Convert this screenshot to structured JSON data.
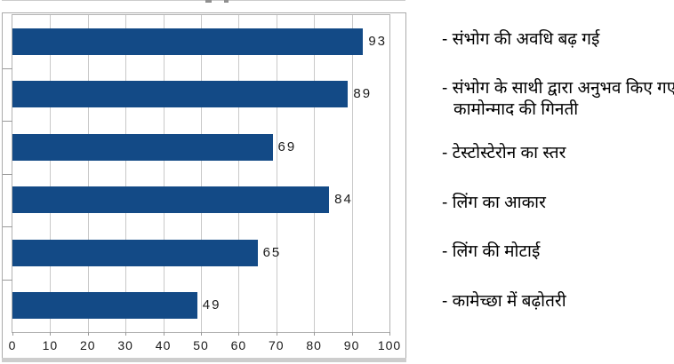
{
  "chart_data": {
    "type": "bar",
    "orientation": "horizontal",
    "title": "",
    "xlabel": "",
    "ylabel": "",
    "xlim": [
      0,
      100
    ],
    "x_ticks": [
      0,
      10,
      20,
      30,
      40,
      50,
      60,
      70,
      80,
      90,
      100
    ],
    "grid": true,
    "legend_position": "right",
    "legend_prefix": "- ",
    "bar_color": "#134a86",
    "categories": [
      "संभोग की अवधि बढ़ गई",
      "संभोग के साथी द्वारा अनुभव किए गए कामोन्माद की गिनती",
      "टेस्टोस्टेरोन का स्तर",
      "लिंग का आकार",
      "लिंग की मोटाई",
      "कामेच्छा में बढ़ोतरी"
    ],
    "values": [
      93,
      89,
      69,
      84,
      65,
      49
    ],
    "value_labels": [
      "93",
      "89",
      "69",
      "84",
      "65",
      "49"
    ]
  },
  "colors": {
    "bar": "#134a86",
    "gridline": "#c9c9c9",
    "plot_border": "#b2b2b2",
    "panel_border": "#ababab",
    "axis_text": "#1a1a1a",
    "legend_text": "#000000"
  }
}
